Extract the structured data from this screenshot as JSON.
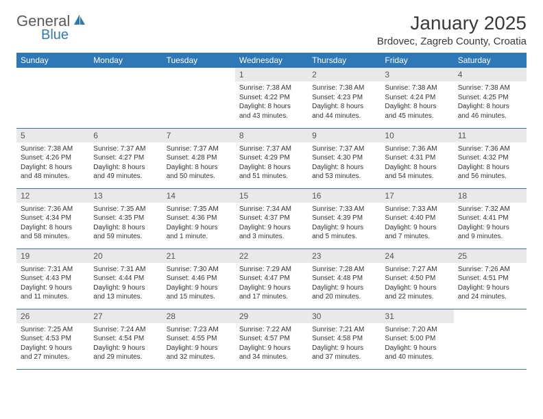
{
  "logo": {
    "text1": "General",
    "text2": "Blue"
  },
  "title": "January 2025",
  "location": "Brdovec, Zagreb County, Croatia",
  "colors": {
    "header_bg": "#2f78b7",
    "header_fg": "#ffffff",
    "daynum_bg": "#e9e9e9",
    "border": "#2f78b7",
    "text": "#333333",
    "logo_gray": "#5a5a5a",
    "logo_blue": "#2f78b7",
    "background": "#ffffff"
  },
  "week_header": [
    "Sunday",
    "Monday",
    "Tuesday",
    "Wednesday",
    "Thursday",
    "Friday",
    "Saturday"
  ],
  "weeks": [
    [
      null,
      null,
      null,
      {
        "n": "1",
        "sr": "7:38 AM",
        "ss": "4:22 PM",
        "dl": "8 hours and 43 minutes."
      },
      {
        "n": "2",
        "sr": "7:38 AM",
        "ss": "4:23 PM",
        "dl": "8 hours and 44 minutes."
      },
      {
        "n": "3",
        "sr": "7:38 AM",
        "ss": "4:24 PM",
        "dl": "8 hours and 45 minutes."
      },
      {
        "n": "4",
        "sr": "7:38 AM",
        "ss": "4:25 PM",
        "dl": "8 hours and 46 minutes."
      }
    ],
    [
      {
        "n": "5",
        "sr": "7:38 AM",
        "ss": "4:26 PM",
        "dl": "8 hours and 48 minutes."
      },
      {
        "n": "6",
        "sr": "7:37 AM",
        "ss": "4:27 PM",
        "dl": "8 hours and 49 minutes."
      },
      {
        "n": "7",
        "sr": "7:37 AM",
        "ss": "4:28 PM",
        "dl": "8 hours and 50 minutes."
      },
      {
        "n": "8",
        "sr": "7:37 AM",
        "ss": "4:29 PM",
        "dl": "8 hours and 51 minutes."
      },
      {
        "n": "9",
        "sr": "7:37 AM",
        "ss": "4:30 PM",
        "dl": "8 hours and 53 minutes."
      },
      {
        "n": "10",
        "sr": "7:36 AM",
        "ss": "4:31 PM",
        "dl": "8 hours and 54 minutes."
      },
      {
        "n": "11",
        "sr": "7:36 AM",
        "ss": "4:32 PM",
        "dl": "8 hours and 56 minutes."
      }
    ],
    [
      {
        "n": "12",
        "sr": "7:36 AM",
        "ss": "4:34 PM",
        "dl": "8 hours and 58 minutes."
      },
      {
        "n": "13",
        "sr": "7:35 AM",
        "ss": "4:35 PM",
        "dl": "8 hours and 59 minutes."
      },
      {
        "n": "14",
        "sr": "7:35 AM",
        "ss": "4:36 PM",
        "dl": "9 hours and 1 minute."
      },
      {
        "n": "15",
        "sr": "7:34 AM",
        "ss": "4:37 PM",
        "dl": "9 hours and 3 minutes."
      },
      {
        "n": "16",
        "sr": "7:33 AM",
        "ss": "4:39 PM",
        "dl": "9 hours and 5 minutes."
      },
      {
        "n": "17",
        "sr": "7:33 AM",
        "ss": "4:40 PM",
        "dl": "9 hours and 7 minutes."
      },
      {
        "n": "18",
        "sr": "7:32 AM",
        "ss": "4:41 PM",
        "dl": "9 hours and 9 minutes."
      }
    ],
    [
      {
        "n": "19",
        "sr": "7:31 AM",
        "ss": "4:43 PM",
        "dl": "9 hours and 11 minutes."
      },
      {
        "n": "20",
        "sr": "7:31 AM",
        "ss": "4:44 PM",
        "dl": "9 hours and 13 minutes."
      },
      {
        "n": "21",
        "sr": "7:30 AM",
        "ss": "4:46 PM",
        "dl": "9 hours and 15 minutes."
      },
      {
        "n": "22",
        "sr": "7:29 AM",
        "ss": "4:47 PM",
        "dl": "9 hours and 17 minutes."
      },
      {
        "n": "23",
        "sr": "7:28 AM",
        "ss": "4:48 PM",
        "dl": "9 hours and 20 minutes."
      },
      {
        "n": "24",
        "sr": "7:27 AM",
        "ss": "4:50 PM",
        "dl": "9 hours and 22 minutes."
      },
      {
        "n": "25",
        "sr": "7:26 AM",
        "ss": "4:51 PM",
        "dl": "9 hours and 24 minutes."
      }
    ],
    [
      {
        "n": "26",
        "sr": "7:25 AM",
        "ss": "4:53 PM",
        "dl": "9 hours and 27 minutes."
      },
      {
        "n": "27",
        "sr": "7:24 AM",
        "ss": "4:54 PM",
        "dl": "9 hours and 29 minutes."
      },
      {
        "n": "28",
        "sr": "7:23 AM",
        "ss": "4:55 PM",
        "dl": "9 hours and 32 minutes."
      },
      {
        "n": "29",
        "sr": "7:22 AM",
        "ss": "4:57 PM",
        "dl": "9 hours and 34 minutes."
      },
      {
        "n": "30",
        "sr": "7:21 AM",
        "ss": "4:58 PM",
        "dl": "9 hours and 37 minutes."
      },
      {
        "n": "31",
        "sr": "7:20 AM",
        "ss": "5:00 PM",
        "dl": "9 hours and 40 minutes."
      },
      null
    ]
  ],
  "labels": {
    "sunrise": "Sunrise:",
    "sunset": "Sunset:",
    "daylight": "Daylight:"
  }
}
